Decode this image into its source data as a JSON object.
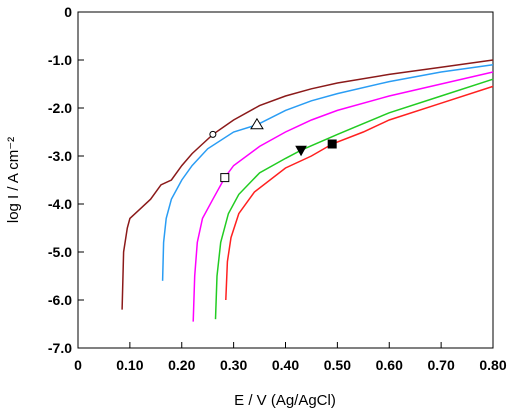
{
  "chart_data": {
    "type": "line",
    "xlabel": "E / V (Ag/AgCl)",
    "ylabel": "log I / A cm⁻²",
    "xlim": [
      0,
      0.8
    ],
    "ylim": [
      -7,
      0
    ],
    "xticks": [
      0,
      {
        "value": 0.1,
        "label": "0.10"
      },
      {
        "value": 0.2,
        "label": "0.20"
      },
      {
        "value": 0.3,
        "label": "0.30"
      },
      {
        "value": 0.4,
        "label": "0.40"
      },
      {
        "value": 0.5,
        "label": "0.50"
      },
      {
        "value": 0.6,
        "label": "0.60"
      },
      {
        "value": 0.7,
        "label": "0.70"
      },
      {
        "value": 0.8,
        "label": "0.80"
      }
    ],
    "yticks": [
      0,
      {
        "value": -1,
        "label": "-1.0"
      },
      {
        "value": -2,
        "label": "-2.0"
      },
      {
        "value": -3,
        "label": "-3.0"
      },
      {
        "value": -4,
        "label": "-4.0"
      },
      {
        "value": -5,
        "label": "-5.0"
      },
      {
        "value": -6,
        "label": "-6.0"
      },
      {
        "value": -7,
        "label": "-7.0"
      }
    ],
    "series": [
      {
        "color": "#8b1a1a",
        "x": [
          0.085,
          0.088,
          0.095,
          0.1,
          0.12,
          0.14,
          0.16,
          0.18,
          0.2,
          0.22,
          0.24,
          0.26,
          0.3,
          0.35,
          0.4,
          0.45,
          0.5,
          0.6,
          0.7,
          0.8
        ],
        "values": [
          -6.2,
          -5.0,
          -4.5,
          -4.3,
          -4.1,
          -3.9,
          -3.6,
          -3.5,
          -3.2,
          -2.95,
          -2.75,
          -2.55,
          -2.25,
          -1.95,
          -1.75,
          -1.6,
          -1.48,
          -1.3,
          -1.15,
          -1.0
        ],
        "marker": {
          "shape": "circle",
          "filled": false,
          "x": 0.26,
          "y": -2.55
        }
      },
      {
        "color": "#2a9df4",
        "x": [
          0.163,
          0.165,
          0.17,
          0.18,
          0.2,
          0.22,
          0.25,
          0.3,
          0.345,
          0.4,
          0.45,
          0.5,
          0.6,
          0.7,
          0.8
        ],
        "values": [
          -5.6,
          -4.8,
          -4.3,
          -3.9,
          -3.5,
          -3.2,
          -2.85,
          -2.5,
          -2.35,
          -2.05,
          -1.85,
          -1.7,
          -1.45,
          -1.25,
          -1.1
        ],
        "marker": {
          "shape": "triangle",
          "filled": false,
          "x": 0.345,
          "y": -2.35
        }
      },
      {
        "color": "#ff00ff",
        "x": [
          0.222,
          0.225,
          0.23,
          0.24,
          0.26,
          0.283,
          0.3,
          0.35,
          0.4,
          0.45,
          0.5,
          0.6,
          0.7,
          0.8
        ],
        "values": [
          -6.45,
          -5.5,
          -4.8,
          -4.3,
          -3.9,
          -3.45,
          -3.2,
          -2.8,
          -2.5,
          -2.25,
          -2.05,
          -1.75,
          -1.5,
          -1.25
        ],
        "marker": {
          "shape": "square",
          "filled": false,
          "x": 0.283,
          "y": -3.45
        }
      },
      {
        "color": "#22cc22",
        "x": [
          0.265,
          0.268,
          0.275,
          0.29,
          0.31,
          0.35,
          0.4,
          0.43,
          0.5,
          0.6,
          0.7,
          0.8
        ],
        "values": [
          -6.4,
          -5.5,
          -4.8,
          -4.2,
          -3.8,
          -3.35,
          -3.05,
          -2.88,
          -2.55,
          -2.1,
          -1.75,
          -1.4
        ],
        "marker": {
          "shape": "triangle-down",
          "filled": true,
          "x": 0.43,
          "y": -2.88
        }
      },
      {
        "color": "#ff2020",
        "x": [
          0.285,
          0.288,
          0.295,
          0.31,
          0.34,
          0.4,
          0.45,
          0.49,
          0.55,
          0.6,
          0.7,
          0.8
        ],
        "values": [
          -6.0,
          -5.2,
          -4.7,
          -4.2,
          -3.75,
          -3.25,
          -3.0,
          -2.75,
          -2.5,
          -2.25,
          -1.9,
          -1.55
        ],
        "marker": {
          "shape": "square",
          "filled": true,
          "x": 0.49,
          "y": -2.75
        }
      }
    ]
  }
}
